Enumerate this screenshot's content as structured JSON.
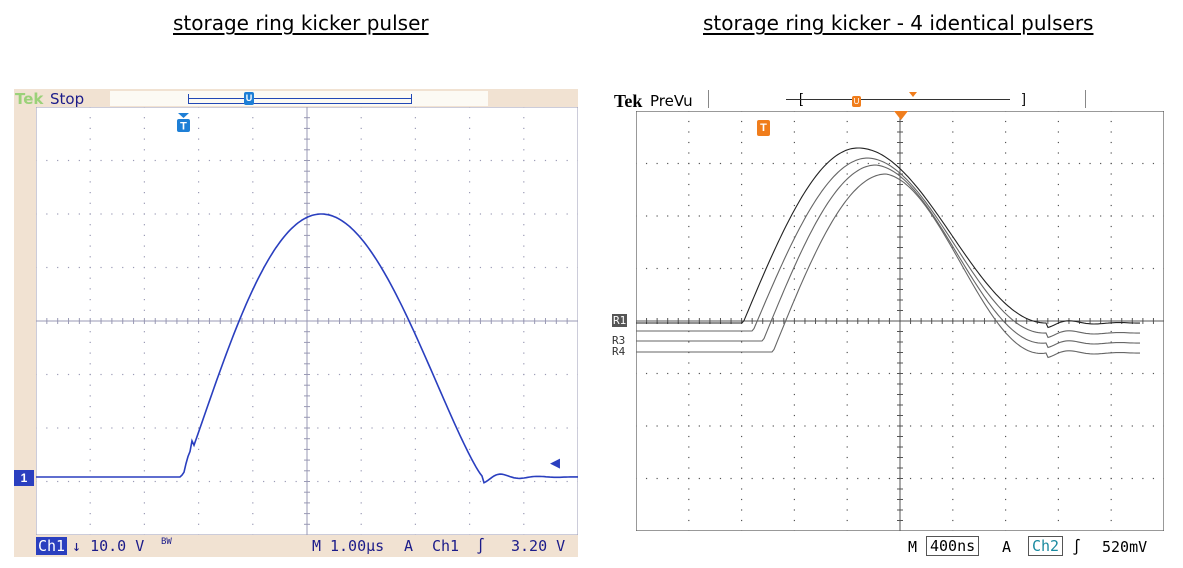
{
  "titles": {
    "left": "storage ring kicker pulser",
    "right": "storage ring kicker - 4 identical pulsers"
  },
  "scope1": {
    "brand": "Tek",
    "mode": "Stop",
    "channel_marker": "1",
    "trigger_marker": "T",
    "record_marker": "U",
    "status": {
      "channel": "Ch1",
      "coupling_icon": "down-arrow-icon",
      "volts_per_div": "10.0 V",
      "bw_limit": "BW",
      "m_label": "M",
      "time_per_div": "1.00µs",
      "a_label": "A",
      "trigger_channel": "Ch1",
      "trigger_slope_icon": "rising-edge-icon",
      "trigger_level": "3.20 V"
    },
    "colors": {
      "trace": "#2a3fbf",
      "background": "#f1e2d2",
      "grid": "#bdbdd6"
    }
  },
  "scope2": {
    "brand": "Tek",
    "mode": "PreVu",
    "trigger_marker": "T",
    "record_marker": "U",
    "reference_labels": [
      "R1",
      "R3",
      "R4"
    ],
    "status": {
      "m_label": "M",
      "time_per_div": "400ns",
      "a_label": "A",
      "trigger_channel": "Ch2",
      "trigger_slope_icon": "rising-edge-icon",
      "trigger_level": "520mV"
    },
    "colors": {
      "trace": "#333333",
      "marker": "#f07d1c",
      "grid": "#777777"
    }
  }
}
